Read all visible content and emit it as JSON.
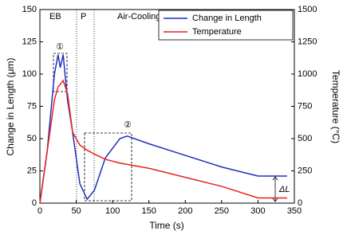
{
  "chart_data": {
    "type": "line",
    "x_label": "Time (s)",
    "y_label": "Change in Length (μm)",
    "y2_label": "Temperature (°C)",
    "x": [
      0,
      10,
      20,
      25,
      28,
      32,
      38,
      45,
      55,
      65,
      75,
      90,
      110,
      120,
      150,
      200,
      250,
      300,
      340
    ],
    "series": [
      {
        "name": "Change in Length",
        "color": "#1f2fc0",
        "values": [
          0,
          40,
          100,
          115,
          105,
          115,
          80,
          55,
          15,
          3,
          10,
          35,
          50,
          52,
          46,
          37,
          28,
          21,
          21
        ]
      },
      {
        "name": "Temperature",
        "color": "#e8211f",
        "axis": "y2",
        "values": [
          0,
          400,
          800,
          900,
          920,
          950,
          850,
          550,
          450,
          410,
          380,
          340,
          310,
          300,
          270,
          200,
          130,
          40,
          40
        ]
      }
    ],
    "xlim": [
      0,
      350
    ],
    "xticks": [
      0,
      50,
      100,
      150,
      200,
      250,
      300,
      350
    ],
    "ylim": [
      0,
      150
    ],
    "yticks": [
      0,
      25,
      50,
      75,
      100,
      125,
      150
    ],
    "y2lim": [
      0,
      1500
    ],
    "y2ticks": [
      0,
      250,
      500,
      750,
      1000,
      1250,
      1500
    ],
    "legend": "upper right",
    "annotations": [
      "EB",
      "P",
      "Air-Cooling",
      "①",
      "②",
      "ΔL"
    ]
  }
}
